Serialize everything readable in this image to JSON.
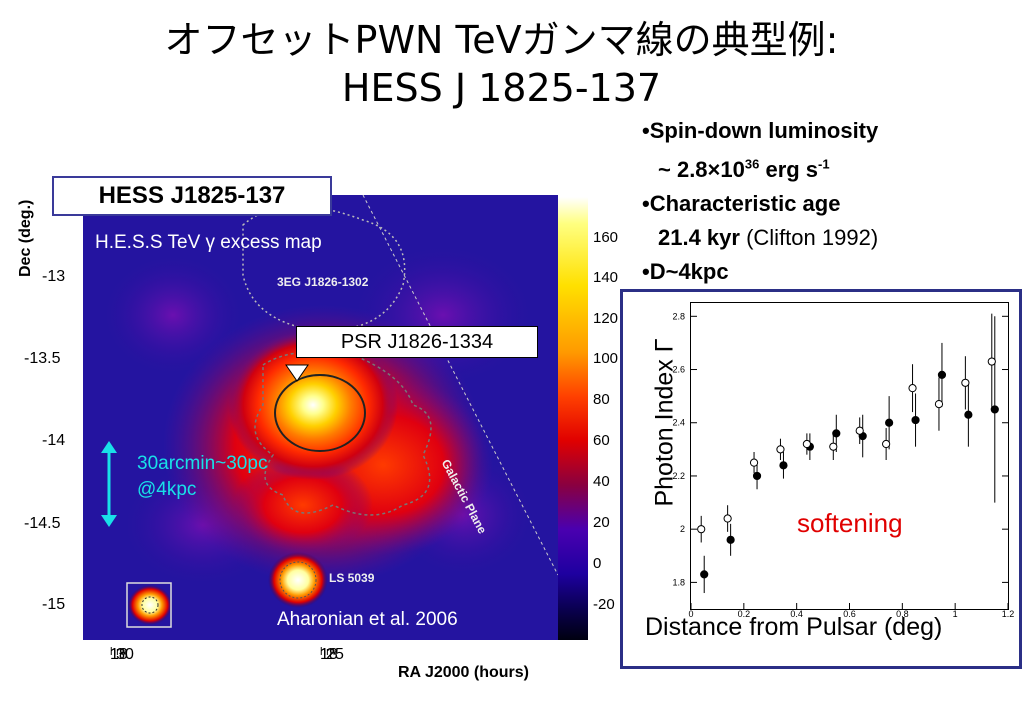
{
  "title": {
    "line1": "オフセットPWN TeVガンマ線の典型例:",
    "line2": "HESS J 1825-137"
  },
  "bullets": {
    "b1_label": "•Spin-down luminosity",
    "b1_value_prefix": "~ 2.8×10",
    "b1_value_exp": "36",
    "b1_value_unit": " erg s",
    "b1_value_unit_exp": "-1",
    "b2_label": "•Characteristic age",
    "b2_value": "21.4 kyr",
    "b2_ref": " (Clifton 1992)",
    "b3": "•D~4kpc"
  },
  "skymap": {
    "box_label": "HESS J1825-137",
    "subtitle": "H.E.S.S  TeV γ excess map",
    "source_3eg": "3EG J1826-1302",
    "psr_label": "PSR J1826-1334",
    "galactic_plane": "Galactic Plane",
    "scale_label": "30arcmin~30pc",
    "scale_sub": "@4kpc",
    "ls_label": "LS 5039",
    "citation": "Aharonian et al. 2006",
    "y_axis_title": "Dec (deg.)",
    "x_axis_title": "RA J2000 (hours)",
    "y_ticks": [
      "-13",
      "-13.5",
      "-14",
      "-14.5",
      "-15"
    ],
    "x_ticks": [
      "18h30m",
      "18h25m"
    ],
    "x_tick_main": [
      "18",
      "18"
    ],
    "x_tick_h": [
      "h",
      "h"
    ],
    "x_tick_val": [
      "30",
      "25"
    ],
    "x_tick_m": [
      "m",
      "m"
    ],
    "colorbar_ticks": [
      "160",
      "140",
      "120",
      "100",
      "80",
      "60",
      "40",
      "20",
      "0",
      "-20"
    ],
    "colors": {
      "accent_box": "#3a3a9a",
      "scale_arrow": "#19e0e8"
    }
  },
  "chart_data": {
    "type": "scatter",
    "title": "",
    "xlabel": "Distance from Pulsar (deg)",
    "ylabel": "Photon Index Γ",
    "annotation": "softening",
    "xlim": [
      0,
      1.2
    ],
    "ylim": [
      1.7,
      2.85
    ],
    "y_ticks": [
      "1.8",
      "2",
      "2.2",
      "2.4",
      "2.6",
      "2.8"
    ],
    "x_ticks": [
      "0",
      "0.2",
      "0.4",
      "0.6",
      "0.8",
      "1",
      "1.2"
    ],
    "series": [
      {
        "marker": "filled",
        "x": [
          0.05,
          0.15,
          0.25,
          0.35,
          0.45,
          0.55,
          0.65,
          0.75,
          0.85,
          0.95,
          1.05,
          1.15
        ],
        "y": [
          1.83,
          1.96,
          2.2,
          2.24,
          2.31,
          2.36,
          2.35,
          2.4,
          2.41,
          2.58,
          2.43,
          2.45
        ],
        "err": [
          0.07,
          0.06,
          0.05,
          0.05,
          0.05,
          0.07,
          0.08,
          0.1,
          0.1,
          0.12,
          0.12,
          0.35
        ]
      },
      {
        "marker": "open",
        "x": [
          0.05,
          0.15,
          0.25,
          0.35,
          0.45,
          0.55,
          0.65,
          0.75,
          0.85,
          0.95,
          1.05,
          1.15
        ],
        "y": [
          2.0,
          2.04,
          2.25,
          2.3,
          2.32,
          2.31,
          2.37,
          2.32,
          2.53,
          2.47,
          2.55,
          2.63
        ],
        "err": [
          0.05,
          0.05,
          0.04,
          0.04,
          0.04,
          0.05,
          0.05,
          0.06,
          0.09,
          0.1,
          0.1,
          0.18
        ]
      }
    ],
    "colors": {
      "annotation": "#e00000",
      "frame": "#2b2f86"
    }
  }
}
